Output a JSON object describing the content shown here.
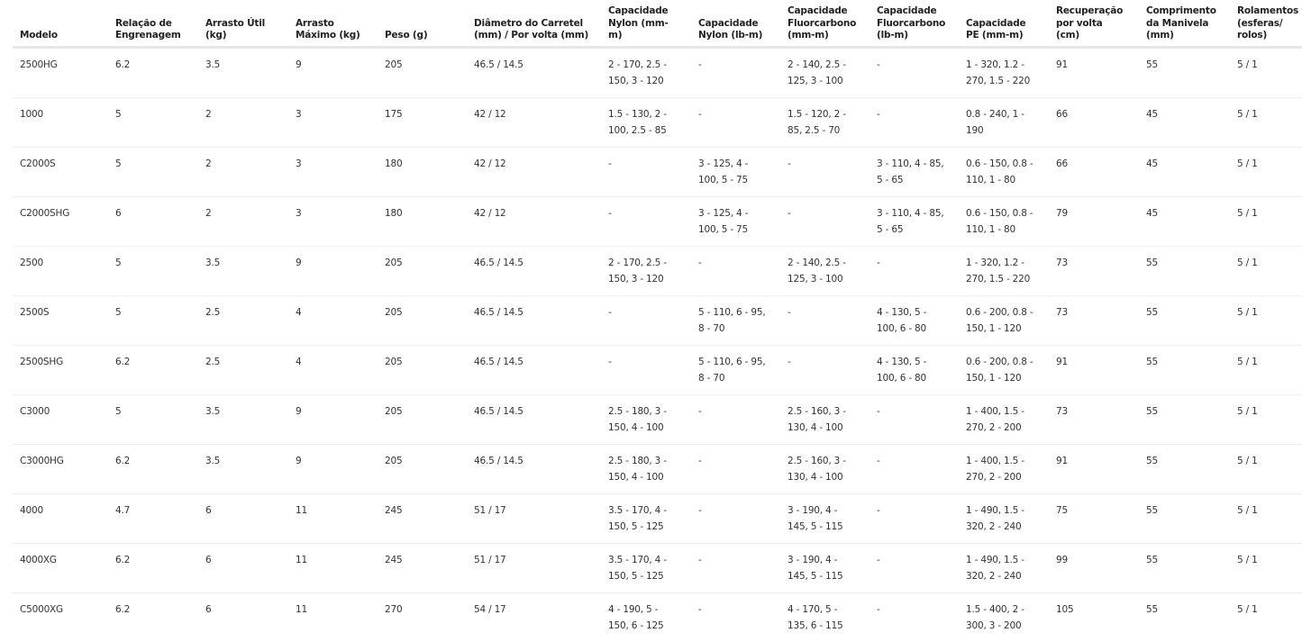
{
  "table": {
    "headers": [
      "Modelo",
      "Relação de Engrenagem",
      "Arrasto Útil (kg)",
      "Arrasto Máximo (kg)",
      "Peso (g)",
      "Diâmetro do Carretel (mm) / Por volta (mm)",
      "Capacidade Nylon (mm-m)",
      "Capacidade Nylon (lb-m)",
      "Capacidade Fluorcarbono (mm-m)",
      "Capacidade Fluorcarbono (lb-m)",
      "Capacidade PE (mm-m)",
      "Recuperação por volta (cm)",
      "Comprimento da Manivela (mm)",
      "Rolamentos (esferas/ rolos)"
    ],
    "rows": [
      [
        "2500HG",
        "6.2",
        "3.5",
        "9",
        "205",
        "46.5 / 14.5",
        "2 - 170, 2.5 - 150, 3 - 120",
        "-",
        "2 - 140, 2.5 - 125, 3 - 100",
        "-",
        "1 - 320, 1.2 - 270, 1.5 - 220",
        "91",
        "55",
        "5 / 1"
      ],
      [
        "1000",
        "5",
        "2",
        "3",
        "175",
        "42 / 12",
        "1.5 - 130, 2 - 100, 2.5 - 85",
        "-",
        "1.5 - 120, 2 - 85, 2.5 - 70",
        "-",
        "0.8 - 240, 1 - 190",
        "66",
        "45",
        "5 / 1"
      ],
      [
        "C2000S",
        "5",
        "2",
        "3",
        "180",
        "42 / 12",
        "-",
        "3 - 125, 4 - 100, 5 - 75",
        "-",
        "3 - 110, 4 - 85, 5 - 65",
        "0.6 - 150, 0.8 - 110, 1 - 80",
        "66",
        "45",
        "5 / 1"
      ],
      [
        "C2000SHG",
        "6",
        "2",
        "3",
        "180",
        "42 / 12",
        "-",
        "3 - 125, 4 - 100, 5 - 75",
        "-",
        "3 - 110, 4 - 85, 5 - 65",
        "0.6 - 150, 0.8 - 110, 1 - 80",
        "79",
        "45",
        "5 / 1"
      ],
      [
        "2500",
        "5",
        "3.5",
        "9",
        "205",
        "46.5 / 14.5",
        "2 - 170, 2.5 - 150, 3 - 120",
        "-",
        "2 - 140, 2.5 - 125, 3 - 100",
        "-",
        "1 - 320, 1.2 - 270, 1.5 - 220",
        "73",
        "55",
        "5 / 1"
      ],
      [
        "2500S",
        "5",
        "2.5",
        "4",
        "205",
        "46.5 / 14.5",
        "-",
        "5 - 110, 6 - 95, 8 - 70",
        "-",
        "4 - 130, 5 - 100, 6 - 80",
        "0.6 - 200, 0.8 - 150, 1 - 120",
        "73",
        "55",
        "5 / 1"
      ],
      [
        "2500SHG",
        "6.2",
        "2.5",
        "4",
        "205",
        "46.5 / 14.5",
        "-",
        "5 - 110, 6 - 95, 8 - 70",
        "-",
        "4 - 130, 5 - 100, 6 - 80",
        "0.6 - 200, 0.8 - 150, 1 - 120",
        "91",
        "55",
        "5 / 1"
      ],
      [
        "C3000",
        "5",
        "3.5",
        "9",
        "205",
        "46.5 / 14.5",
        "2.5 - 180, 3 - 150, 4 - 100",
        "-",
        "2.5 - 160, 3 - 130, 4 - 100",
        "-",
        "1 - 400, 1.5 - 270, 2 - 200",
        "73",
        "55",
        "5 / 1"
      ],
      [
        "C3000HG",
        "6.2",
        "3.5",
        "9",
        "205",
        "46.5 / 14.5",
        "2.5 - 180, 3 - 150, 4 - 100",
        "-",
        "2.5 - 160, 3 - 130, 4 - 100",
        "-",
        "1 - 400, 1.5 - 270, 2 - 200",
        "91",
        "55",
        "5 / 1"
      ],
      [
        "4000",
        "4.7",
        "6",
        "11",
        "245",
        "51 / 17",
        "3.5 - 170, 4 - 150, 5 - 125",
        "-",
        "3 - 190, 4 - 145, 5 - 115",
        "-",
        "1 - 490, 1.5 - 320, 2 - 240",
        "75",
        "55",
        "5 / 1"
      ],
      [
        "4000XG",
        "6.2",
        "6",
        "11",
        "245",
        "51 / 17",
        "3.5 - 170, 4 - 150, 5 - 125",
        "-",
        "3 - 190, 4 - 145, 5 - 115",
        "-",
        "1 - 490, 1.5 - 320, 2 - 240",
        "99",
        "55",
        "5 / 1"
      ],
      [
        "C5000XG",
        "6.2",
        "6",
        "11",
        "270",
        "54 / 17",
        "4 - 190, 5 - 150, 6 - 125",
        "-",
        "4 - 170, 5 - 135, 6 - 115",
        "-",
        "1.5 - 400, 2 - 300, 3 - 200",
        "105",
        "55",
        "5 / 1"
      ]
    ]
  }
}
